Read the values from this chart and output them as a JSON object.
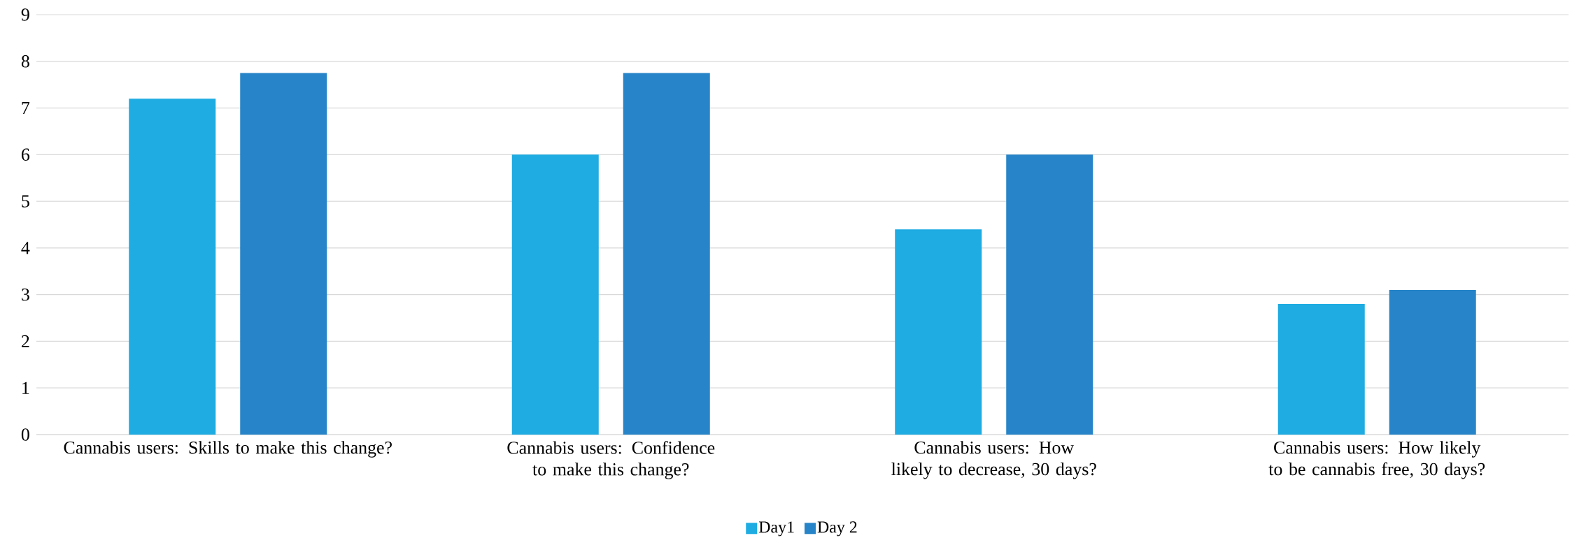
{
  "chart_data": {
    "type": "bar",
    "categories": [
      "Cannabis users: Skills to make this change?",
      "Cannabis users: Confidence to make this change?",
      "Cannabis users: How likely to decrease, 30 days?",
      "Cannabis users: How likely to be cannabis free, 30 days?"
    ],
    "series": [
      {
        "name": "Day1",
        "color": "#1eace2",
        "values": [
          7.2,
          6.0,
          4.4,
          2.8
        ]
      },
      {
        "name": "Day 2",
        "color": "#2784c8",
        "values": [
          7.75,
          7.75,
          6.0,
          3.1
        ]
      }
    ],
    "ylim": [
      0,
      9
    ],
    "yticks": [
      0,
      1,
      2,
      3,
      4,
      5,
      6,
      7,
      8,
      9
    ],
    "grid": "y",
    "legend": "bottom"
  }
}
